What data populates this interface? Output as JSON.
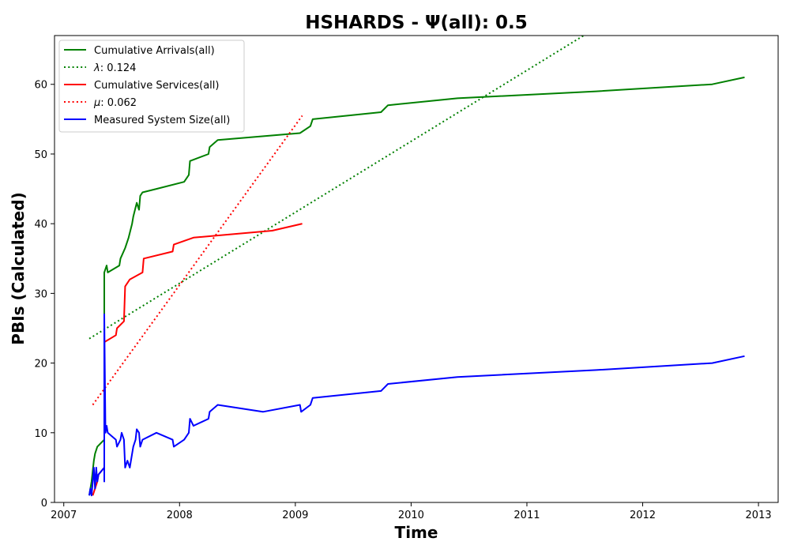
{
  "chart_data": {
    "type": "line",
    "title": "HSHARDS -  Ψ(all): 0.5",
    "xlabel": "Time",
    "ylabel": "PBIs (Calculated)",
    "xlim": [
      2006.92,
      2013.17
    ],
    "ylim": [
      0,
      67
    ],
    "xticks": [
      2007,
      2008,
      2009,
      2010,
      2011,
      2012,
      2013
    ],
    "xtick_labels": [
      "2007",
      "2008",
      "2009",
      "2010",
      "2011",
      "2012",
      "2013"
    ],
    "yticks": [
      0,
      10,
      20,
      30,
      40,
      50,
      60
    ],
    "ytick_labels": [
      "0",
      "10",
      "20",
      "30",
      "40",
      "50",
      "60"
    ],
    "grid": false,
    "legend_position": "top-left",
    "series": [
      {
        "name": "Cumulative Arrivals(all)",
        "style": "solid",
        "color": "#008000",
        "x": [
          2007.22,
          2007.24,
          2007.26,
          2007.27,
          2007.29,
          2007.35,
          2007.35,
          2007.37,
          2007.38,
          2007.48,
          2007.49,
          2007.53,
          2007.56,
          2007.59,
          2007.6,
          2007.63,
          2007.65,
          2007.66,
          2007.68,
          2007.8,
          2008.04,
          2008.08,
          2008.09,
          2008.25,
          2008.26,
          2008.33,
          2009.04,
          2009.13,
          2009.15,
          2009.74,
          2009.8,
          2010.4,
          2011.6,
          2012.6,
          2012.88
        ],
        "y": [
          1,
          3,
          6,
          7,
          8,
          9,
          33,
          34,
          33,
          34,
          35,
          36.5,
          38,
          40,
          41,
          43,
          42,
          44,
          44.5,
          45,
          46,
          47,
          49,
          50,
          51,
          52,
          53,
          54,
          55,
          56,
          57,
          58,
          59,
          60,
          61
        ]
      },
      {
        "name": "λ: 0.124",
        "legend_prefix": "λ",
        "legend_value": ": 0.124",
        "style": "dotted",
        "color": "#008000",
        "x": [
          2007.22,
          2011.49
        ],
        "y": [
          23.5,
          67
        ]
      },
      {
        "name": "Cumulative Services(all)",
        "style": "solid",
        "color": "#ff0000",
        "x": [
          2007.25,
          2007.27,
          2007.29,
          2007.3,
          2007.35,
          2007.35,
          2007.45,
          2007.46,
          2007.52,
          2007.53,
          2007.57,
          2007.68,
          2007.69,
          2007.94,
          2007.95,
          2008.12,
          2008.8,
          2009.06
        ],
        "y": [
          1,
          2,
          3,
          4,
          5,
          23,
          24,
          25,
          26,
          31,
          32,
          33,
          35,
          36,
          37,
          38,
          39,
          40
        ]
      },
      {
        "name": "μ: 0.062",
        "legend_prefix": "μ",
        "legend_value": ": 0.062",
        "style": "dotted",
        "color": "#ff0000",
        "x": [
          2007.25,
          2009.06
        ],
        "y": [
          14,
          55.5
        ]
      },
      {
        "name": "Measured System Size(all)",
        "style": "solid",
        "color": "#0000ff",
        "x": [
          2007.22,
          2007.23,
          2007.24,
          2007.25,
          2007.26,
          2007.27,
          2007.28,
          2007.29,
          2007.3,
          2007.35,
          2007.35,
          2007.35,
          2007.36,
          2007.37,
          2007.38,
          2007.45,
          2007.46,
          2007.49,
          2007.5,
          2007.52,
          2007.53,
          2007.55,
          2007.57,
          2007.6,
          2007.62,
          2007.63,
          2007.65,
          2007.66,
          2007.68,
          2007.8,
          2007.94,
          2007.95,
          2008.04,
          2008.08,
          2008.09,
          2008.12,
          2008.25,
          2008.26,
          2008.33,
          2008.72,
          2009.04,
          2009.05,
          2009.13,
          2009.15,
          2009.74,
          2009.8,
          2010.4,
          2011.6,
          2012.6,
          2012.88
        ],
        "y": [
          1,
          2,
          1,
          3,
          5,
          2,
          5,
          3,
          4,
          5,
          3,
          27,
          10,
          11,
          10,
          9,
          8,
          9,
          10,
          9,
          5,
          6,
          5,
          8,
          9,
          10.5,
          10,
          8,
          9,
          10,
          9,
          8,
          9,
          10,
          12,
          11,
          12,
          13,
          14,
          13,
          14,
          13,
          14,
          15,
          16,
          17,
          18,
          19,
          20,
          21
        ]
      }
    ]
  }
}
